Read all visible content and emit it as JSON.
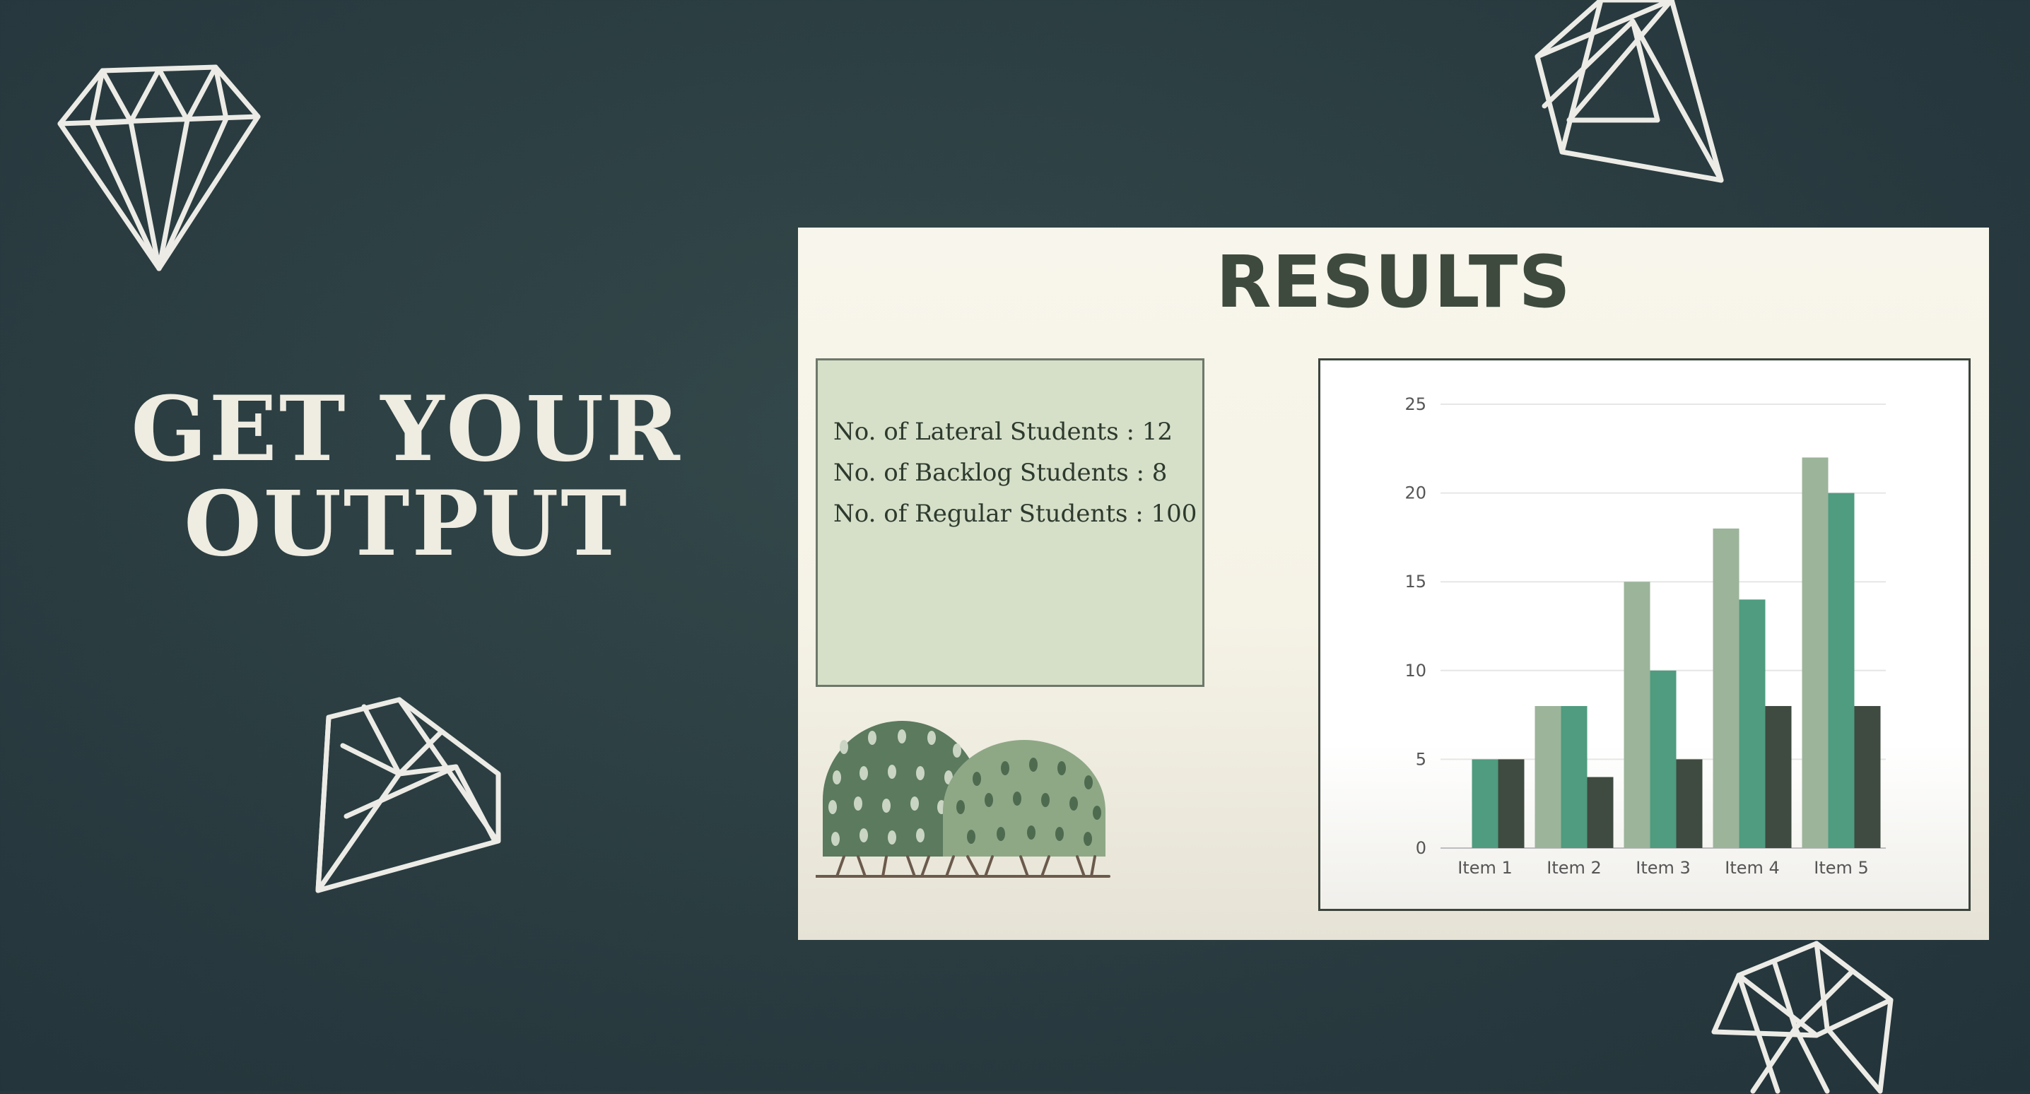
{
  "headline": {
    "line1": "GET YOUR",
    "line2": "OUTPUT"
  },
  "slide": {
    "title": "RESULTS",
    "info": [
      "No. of Lateral Students : 12",
      "No. of Backlog Students : 8",
      "No. of Regular Students : 100"
    ]
  },
  "decorations": [
    "diamond-icon",
    "diamond-icon",
    "diamond-icon",
    "diamond-icon",
    "bush-illustration"
  ],
  "colors": {
    "background": "#2a3c40",
    "series1": "#9cb49a",
    "series2": "#4f9c80",
    "series3": "#3f4a40"
  },
  "chart_data": {
    "type": "bar",
    "categories": [
      "Item 1",
      "Item 2",
      "Item 3",
      "Item 4",
      "Item 5"
    ],
    "series": [
      {
        "values": [
          0,
          8,
          15,
          18,
          22
        ]
      },
      {
        "values": [
          5,
          8,
          10,
          14,
          20
        ]
      },
      {
        "values": [
          5,
          4,
          5,
          8,
          8
        ]
      }
    ],
    "ylim": [
      0,
      25
    ],
    "yticks": [
      0,
      5,
      10,
      15,
      20,
      25
    ],
    "grid": true,
    "legend": "none"
  }
}
